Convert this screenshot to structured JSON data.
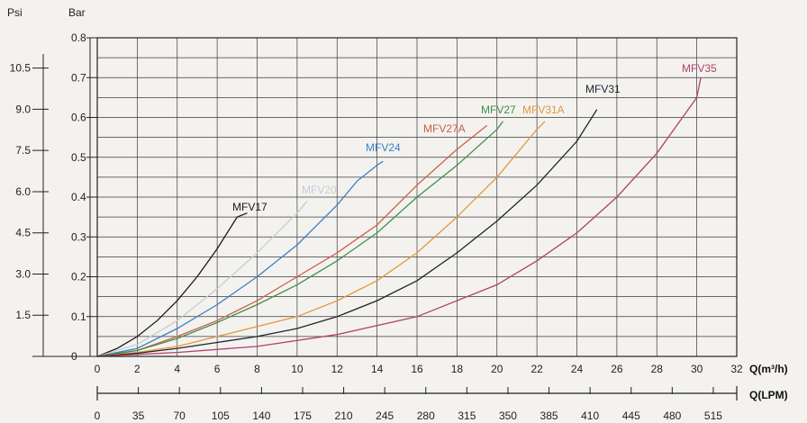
{
  "chart_data": {
    "type": "line",
    "title": "",
    "left_units": {
      "psi": "Psi",
      "bar": "Bar"
    },
    "x_axis": {
      "label": "Q(m³/h)",
      "range": [
        0,
        32
      ],
      "ticks": [
        "0",
        "2",
        "4",
        "6",
        "8",
        "10",
        "12",
        "14",
        "16",
        "18",
        "20",
        "22",
        "24",
        "26",
        "28",
        "30",
        "32"
      ]
    },
    "x2_axis": {
      "label": "Q(LPM)",
      "ticks": [
        "0",
        "35",
        "70",
        "105",
        "140",
        "175",
        "210",
        "245",
        "280",
        "315",
        "350",
        "385",
        "410",
        "445",
        "480",
        "515"
      ]
    },
    "y_axis": {
      "label": "Bar",
      "range": [
        0,
        0.8
      ],
      "ticks": [
        "0",
        "0.1",
        "0.2",
        "0.3",
        "0.4",
        "0.5",
        "0.6",
        "0.7",
        "0.8"
      ]
    },
    "y2_axis": {
      "label": "Psi",
      "ticks": [
        "0",
        "1.5",
        "3.0",
        "4.5",
        "6.0",
        "7.5",
        "9.0",
        "10.5"
      ]
    },
    "grid": true,
    "series": [
      {
        "name": "MFV17",
        "color": "#1a1a1a",
        "x": [
          0,
          1,
          2,
          3,
          4,
          5,
          6,
          7,
          7.5
        ],
        "y": [
          0,
          0.02,
          0.05,
          0.09,
          0.14,
          0.2,
          0.27,
          0.35,
          0.36
        ]
      },
      {
        "name": "MFV20",
        "color": "#c4ccd6",
        "x": [
          0,
          2,
          4,
          6,
          8,
          9,
          10,
          10.5
        ],
        "y": [
          0,
          0.03,
          0.09,
          0.17,
          0.26,
          0.31,
          0.36,
          0.39
        ]
      },
      {
        "name": "MFV24",
        "color": "#3a7fc8",
        "x": [
          0,
          2,
          4,
          6,
          8,
          10,
          12,
          13,
          14,
          14.3
        ],
        "y": [
          0,
          0.02,
          0.07,
          0.13,
          0.2,
          0.28,
          0.38,
          0.44,
          0.48,
          0.49
        ]
      },
      {
        "name": "MFV27A",
        "color": "#c9604a",
        "x": [
          0,
          2,
          4,
          6,
          8,
          10,
          12,
          14,
          16,
          18,
          19.5
        ],
        "y": [
          0,
          0.015,
          0.05,
          0.09,
          0.14,
          0.2,
          0.26,
          0.33,
          0.43,
          0.52,
          0.58
        ]
      },
      {
        "name": "MFV27",
        "color": "#3f8f4a",
        "x": [
          0,
          2,
          4,
          6,
          8,
          10,
          12,
          14,
          16,
          18,
          20,
          20.3
        ],
        "y": [
          0,
          0.015,
          0.045,
          0.085,
          0.13,
          0.18,
          0.24,
          0.31,
          0.4,
          0.48,
          0.57,
          0.59
        ]
      },
      {
        "name": "MFV31A",
        "color": "#e0983c",
        "x": [
          0,
          2,
          4,
          6,
          8,
          10,
          12,
          14,
          16,
          18,
          20,
          22,
          22.4
        ],
        "y": [
          0,
          0.01,
          0.025,
          0.05,
          0.075,
          0.1,
          0.14,
          0.19,
          0.26,
          0.35,
          0.45,
          0.57,
          0.59
        ]
      },
      {
        "name": "MFV31",
        "color": "#1e2430",
        "x": [
          0,
          2,
          4,
          6,
          8,
          10,
          12,
          14,
          16,
          18,
          20,
          22,
          24,
          25
        ],
        "y": [
          0,
          0.008,
          0.02,
          0.035,
          0.05,
          0.07,
          0.1,
          0.14,
          0.19,
          0.26,
          0.34,
          0.43,
          0.54,
          0.62
        ]
      },
      {
        "name": "MFV35",
        "color": "#b0406e",
        "x": [
          0,
          4,
          8,
          12,
          16,
          20,
          22,
          24,
          26,
          28,
          30,
          30.2
        ],
        "y": [
          0,
          0.01,
          0.025,
          0.055,
          0.1,
          0.18,
          0.24,
          0.31,
          0.4,
          0.51,
          0.65,
          0.7
        ]
      }
    ]
  }
}
